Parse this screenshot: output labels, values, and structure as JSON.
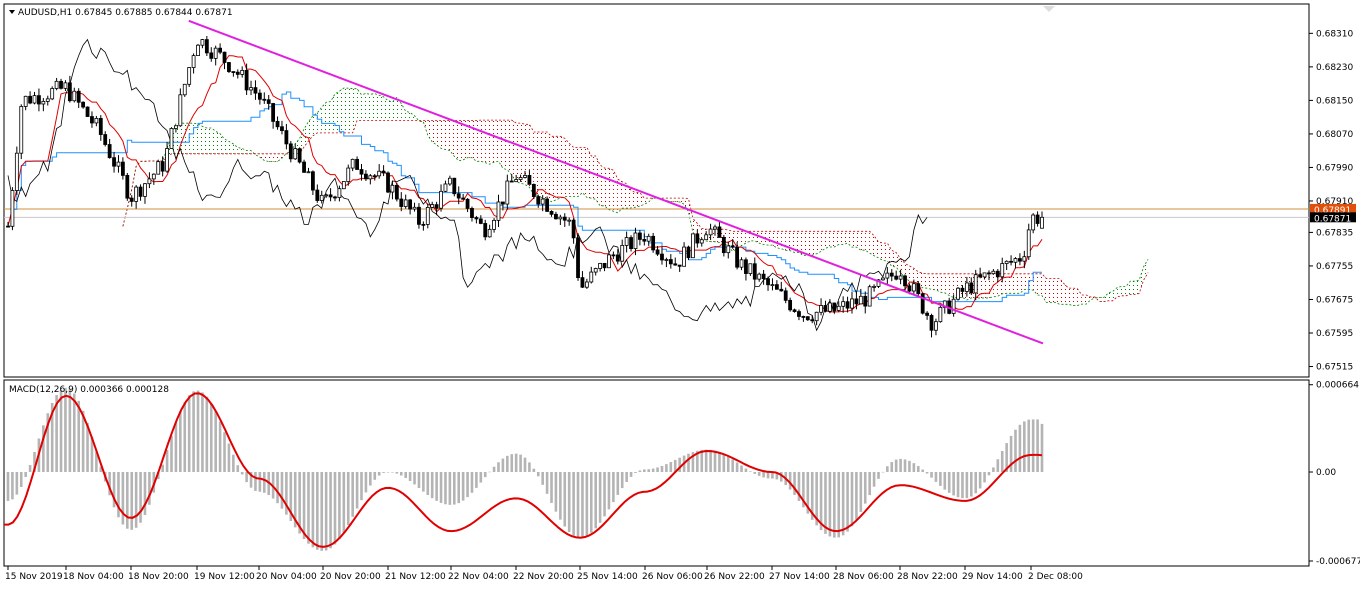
{
  "header": {
    "symbol_line": "AUDUSD,H1  0.67845 0.67885 0.67844 0.67871"
  },
  "macd_panel": {
    "label": "MACD(12,26,9) 0.000366 0.000128"
  },
  "price_labels": {
    "high_line": "0.67891",
    "bid": "0.67871"
  },
  "colors": {
    "background": "#ffffff",
    "bull_candle": "#ffffff",
    "bear_candle": "#000000",
    "trendline": "#e020e0",
    "tenkan": "#e00000",
    "kijun": "#1e90ff",
    "chikou": "#000000",
    "kumo_bear": "#c00000",
    "kumo_bull": "#008000",
    "hline": "#d28c3c",
    "macd_hist": "#b4b4b4",
    "macd_signal": "#e00000",
    "bid_label_bg": "#000000",
    "high_label_bg": "#e0500a"
  },
  "chart_data": [
    {
      "type": "candlestick",
      "title": "AUDUSD,H1",
      "ohlc_current": {
        "open": 0.67845,
        "high": 0.67885,
        "low": 0.67844,
        "close": 0.67871
      },
      "y_ticks": [
        "0.68310",
        "0.68230",
        "0.68150",
        "0.68070",
        "0.67990",
        "0.67910",
        "0.67835",
        "0.67755",
        "0.67675",
        "0.67595",
        "0.67515"
      ],
      "ylim": [
        0.6749,
        0.6838
      ],
      "x_ticks": [
        "15 Nov 2019",
        "18 Nov 04:00",
        "18 Nov 20:00",
        "19 Nov 12:00",
        "20 Nov 04:00",
        "20 Nov 20:00",
        "21 Nov 12:00",
        "22 Nov 04:00",
        "22 Nov 20:00",
        "25 Nov 14:00",
        "26 Nov 06:00",
        "26 Nov 22:00",
        "27 Nov 14:00",
        "28 Nov 06:00",
        "28 Nov 22:00",
        "29 Nov 14:00",
        "2 Dec 08:00"
      ],
      "horizontal_lines": [
        0.67891,
        0.67871
      ],
      "trendline": {
        "from": {
          "x": "19 Nov 10:00",
          "y": 0.6834
        },
        "to": {
          "x": "2 Dec 20:00",
          "y": 0.6757
        }
      },
      "close_path": [
        {
          "x": "15 Nov 2019",
          "y": 0.6785
        },
        {
          "x": "15 Nov 18:00",
          "y": 0.6815
        },
        {
          "x": "18 Nov 04:00",
          "y": 0.6818
        },
        {
          "x": "18 Nov 12:00",
          "y": 0.6808
        },
        {
          "x": "18 Nov 20:00",
          "y": 0.6792
        },
        {
          "x": "19 Nov 04:00",
          "y": 0.68
        },
        {
          "x": "19 Nov 12:00",
          "y": 0.683
        },
        {
          "x": "19 Nov 20:00",
          "y": 0.6824
        },
        {
          "x": "20 Nov 04:00",
          "y": 0.6816
        },
        {
          "x": "20 Nov 12:00",
          "y": 0.6803
        },
        {
          "x": "20 Nov 20:00",
          "y": 0.679
        },
        {
          "x": "21 Nov 04:00",
          "y": 0.68
        },
        {
          "x": "21 Nov 12:00",
          "y": 0.6795
        },
        {
          "x": "21 Nov 20:00",
          "y": 0.6786
        },
        {
          "x": "22 Nov 04:00",
          "y": 0.6795
        },
        {
          "x": "22 Nov 12:00",
          "y": 0.6784
        },
        {
          "x": "22 Nov 20:00",
          "y": 0.6797
        },
        {
          "x": "25 Nov 06:00",
          "y": 0.6785
        },
        {
          "x": "25 Nov 14:00",
          "y": 0.677
        },
        {
          "x": "25 Nov 22:00",
          "y": 0.6778
        },
        {
          "x": "26 Nov 06:00",
          "y": 0.6783
        },
        {
          "x": "26 Nov 14:00",
          "y": 0.6776
        },
        {
          "x": "26 Nov 22:00",
          "y": 0.6785
        },
        {
          "x": "27 Nov 06:00",
          "y": 0.6776
        },
        {
          "x": "27 Nov 14:00",
          "y": 0.677
        },
        {
          "x": "27 Nov 22:00",
          "y": 0.6764
        },
        {
          "x": "28 Nov 06:00",
          "y": 0.6765
        },
        {
          "x": "28 Nov 14:00",
          "y": 0.6768
        },
        {
          "x": "28 Nov 22:00",
          "y": 0.6775
        },
        {
          "x": "29 Nov 06:00",
          "y": 0.6762
        },
        {
          "x": "29 Nov 14:00",
          "y": 0.677
        },
        {
          "x": "2 Dec 00:00",
          "y": 0.6778
        },
        {
          "x": "2 Dec 08:00",
          "y": 0.67871
        }
      ]
    },
    {
      "type": "macd",
      "title": "MACD(12,26,9) 0.000366 0.000128",
      "macd_value": 0.000366,
      "signal_value": 0.000128,
      "y_ticks": [
        "0.000664",
        "0.00",
        "-0.000677"
      ],
      "ylim": [
        -0.000715,
        0.0007
      ],
      "histogram_shape": [
        {
          "x": "15 Nov 2019",
          "y": -0.00022
        },
        {
          "x": "18 Nov 04:00",
          "y": 0.00064
        },
        {
          "x": "18 Nov 20:00",
          "y": -0.00044
        },
        {
          "x": "19 Nov 12:00",
          "y": 0.00062
        },
        {
          "x": "20 Nov 04:00",
          "y": -0.00015
        },
        {
          "x": "20 Nov 20:00",
          "y": -0.0006
        },
        {
          "x": "21 Nov 12:00",
          "y": 0.0
        },
        {
          "x": "22 Nov 04:00",
          "y": -0.00025
        },
        {
          "x": "22 Nov 20:00",
          "y": 0.00014
        },
        {
          "x": "25 Nov 14:00",
          "y": -0.0005
        },
        {
          "x": "26 Nov 06:00",
          "y": 2e-05
        },
        {
          "x": "26 Nov 22:00",
          "y": 0.00017
        },
        {
          "x": "27 Nov 14:00",
          "y": -5e-05
        },
        {
          "x": "28 Nov 06:00",
          "y": -0.0005
        },
        {
          "x": "28 Nov 22:00",
          "y": 0.0001
        },
        {
          "x": "29 Nov 14:00",
          "y": -0.0002
        },
        {
          "x": "2 Dec 08:00",
          "y": 0.0004
        }
      ],
      "signal_shape": [
        {
          "x": "15 Nov 2019",
          "y": -0.0004
        },
        {
          "x": "18 Nov 04:00",
          "y": 0.00058
        },
        {
          "x": "18 Nov 20:00",
          "y": -0.00035
        },
        {
          "x": "19 Nov 12:00",
          "y": 0.0006
        },
        {
          "x": "20 Nov 04:00",
          "y": -5e-05
        },
        {
          "x": "20 Nov 20:00",
          "y": -0.00057
        },
        {
          "x": "21 Nov 12:00",
          "y": -0.00012
        },
        {
          "x": "22 Nov 04:00",
          "y": -0.00045
        },
        {
          "x": "22 Nov 20:00",
          "y": -0.0002
        },
        {
          "x": "25 Nov 14:00",
          "y": -0.0005
        },
        {
          "x": "26 Nov 06:00",
          "y": -0.00015
        },
        {
          "x": "26 Nov 22:00",
          "y": 0.00016
        },
        {
          "x": "27 Nov 14:00",
          "y": 0.0
        },
        {
          "x": "28 Nov 06:00",
          "y": -0.00045
        },
        {
          "x": "28 Nov 22:00",
          "y": -0.0001
        },
        {
          "x": "29 Nov 14:00",
          "y": -0.00022
        },
        {
          "x": "2 Dec 08:00",
          "y": 0.00013
        }
      ]
    }
  ]
}
